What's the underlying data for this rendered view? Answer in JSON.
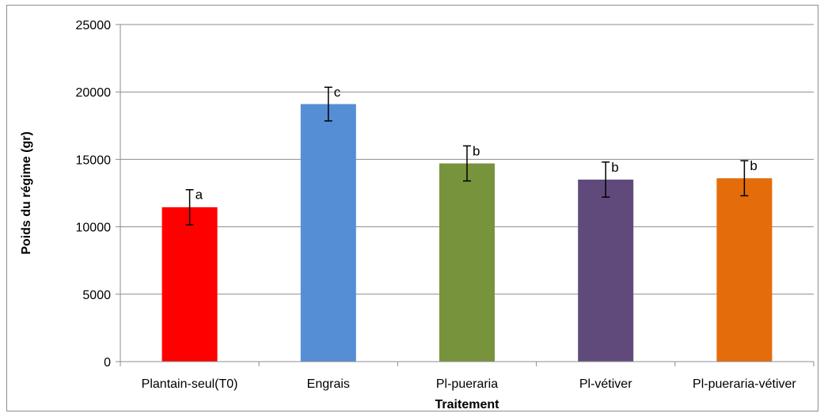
{
  "chart_data": {
    "type": "bar",
    "categories": [
      "Plantain-seul(T0)",
      "Engrais",
      "Pl-pueraria",
      "Pl-vétiver",
      "Pl-pueraria-vétiver"
    ],
    "values": [
      11450,
      19100,
      14700,
      13500,
      13600
    ],
    "errors": [
      1300,
      1250,
      1300,
      1300,
      1300
    ],
    "significance_letters": [
      "a",
      "c",
      "b",
      "b",
      "b"
    ],
    "colors": [
      "#ff0000",
      "#558ed5",
      "#77933c",
      "#604a7b",
      "#e46c0a"
    ],
    "xlabel": "Traitement",
    "ylabel": "Poids du régime (gr)",
    "ylim": [
      0,
      25000
    ],
    "yticks": [
      0,
      5000,
      10000,
      15000,
      20000,
      25000
    ],
    "grid": true,
    "legend": "none"
  }
}
